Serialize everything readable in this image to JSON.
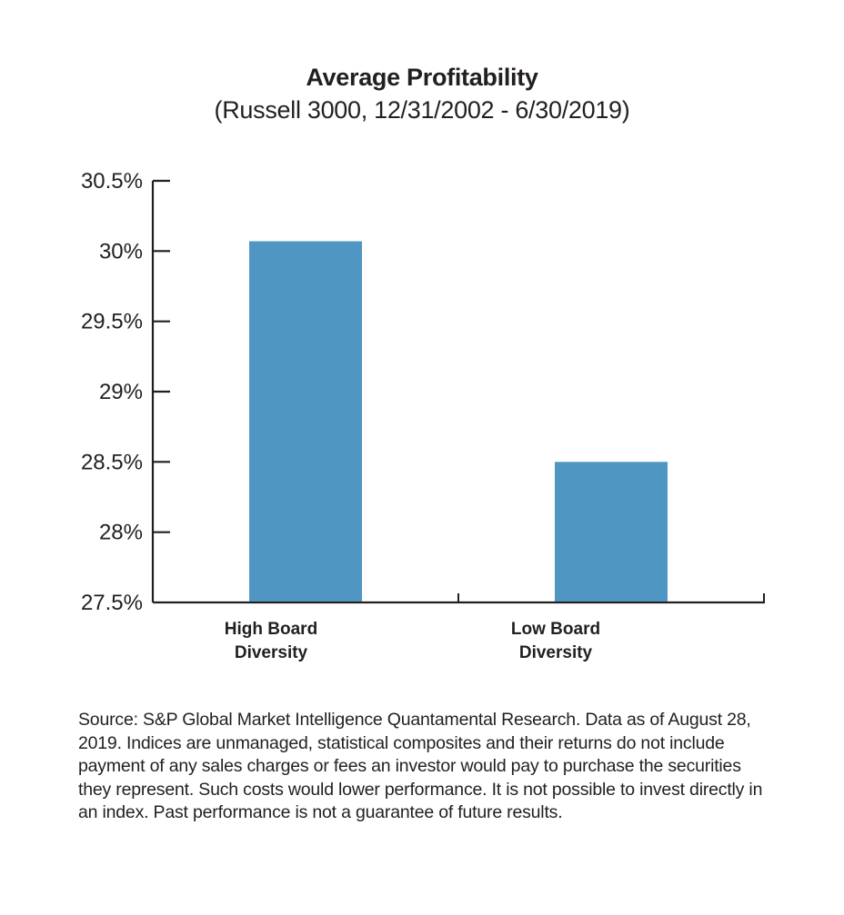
{
  "chart_data": {
    "type": "bar",
    "title": "Average Profitability",
    "subtitle": "(Russell 3000, 12/31/2002 - 6/30/2019)",
    "categories": [
      [
        "High Board",
        "Diversity"
      ],
      [
        "Low Board",
        "Diversity"
      ]
    ],
    "values": [
      30.07,
      28.5
    ],
    "unit": "%",
    "xlabel": "",
    "ylabel": "",
    "ylim": [
      27.5,
      30.5
    ],
    "yticks": [
      27.5,
      28,
      28.5,
      29,
      29.5,
      30,
      30.5
    ],
    "ytick_labels": [
      "27.5%",
      "28%",
      "28.5%",
      "29%",
      "29.5%",
      "30%",
      "30.5%"
    ],
    "grid": false,
    "legend": "none",
    "bar_color": "#4f97c2",
    "axis_color": "#231f20"
  },
  "footnote": "Source: S&P Global Market Intelligence Quantamental Research. Data as of August 28, 2019. Indices are unmanaged, statistical composites and their returns do not include payment of any sales charges or fees an investor would pay to purchase the securities they represent. Such costs would lower performance. It is not possible to invest directly in an index. Past performance is not a guarantee of future results."
}
